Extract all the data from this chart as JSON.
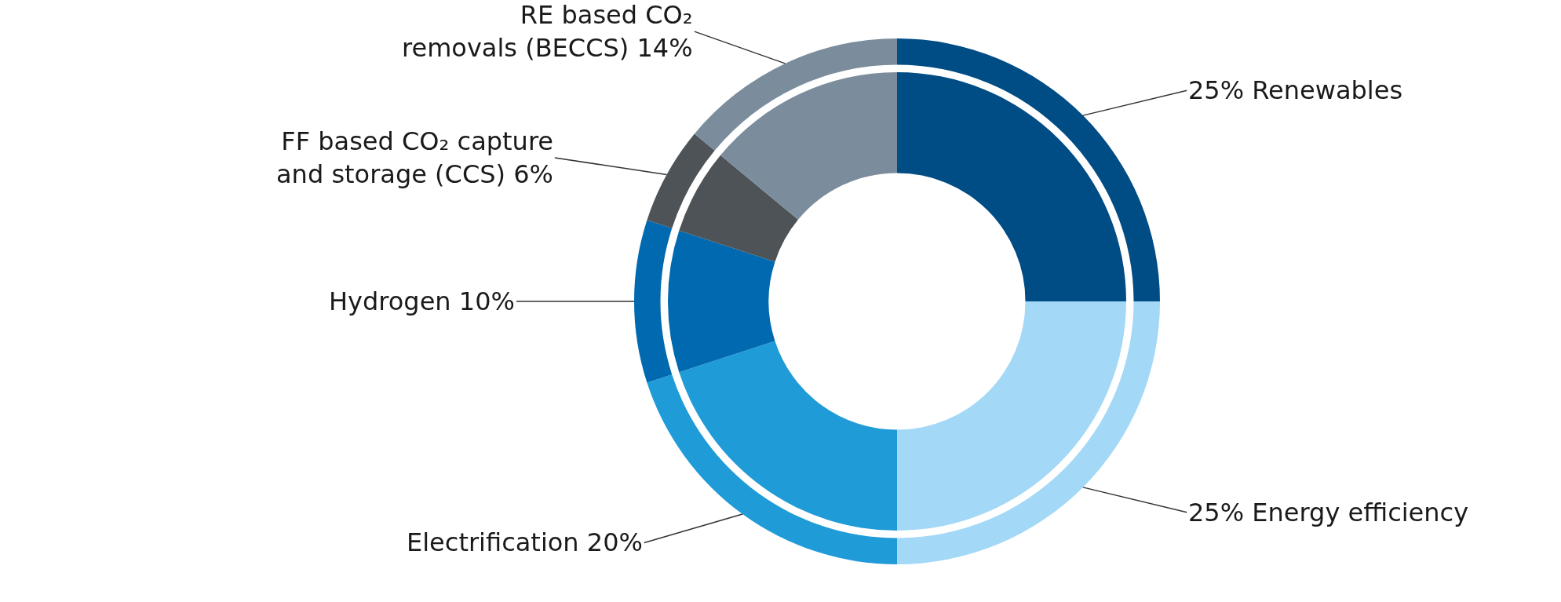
{
  "chart_data": {
    "type": "donut",
    "categories": [
      "25% Renewables",
      "25% Energy efficiency",
      "Electrification 20%",
      "Hydrogen 10%",
      "FF based CO₂ capture and storage (CCS) 6%",
      "RE based CO₂ removals (BECCS) 14%"
    ],
    "series": [
      {
        "values": [
          25,
          25,
          20,
          10,
          6,
          14
        ]
      },
      {
        "values": [
          25,
          25,
          20,
          10,
          6,
          14
        ]
      }
    ],
    "colors": [
      "#004c85",
      "#a3d8f7",
      "#1f9bd7",
      "#0069b0",
      "#4d5356",
      "#7b8d9c"
    ],
    "legend": false
  }
}
